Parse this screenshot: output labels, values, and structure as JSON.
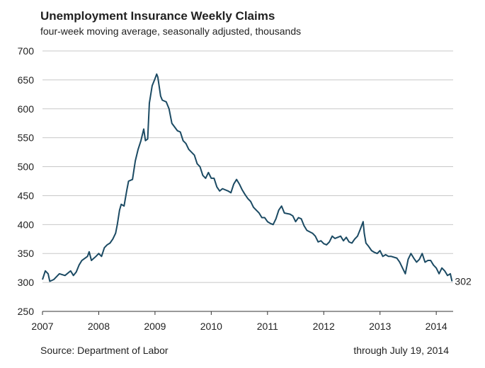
{
  "chart_data": {
    "type": "line",
    "title": "Unemployment Insurance Weekly Claims",
    "subtitle": "four-week moving average, seasonally adjusted, thousands",
    "source": "Source: Department  of Labor",
    "note": "through  July 19, 2014",
    "color": "#1b4a63",
    "grid": true,
    "xlim": [
      2007,
      2014.3
    ],
    "xticks": [
      2007,
      2008,
      2009,
      2010,
      2011,
      2012,
      2013,
      2014
    ],
    "ylim": [
      250,
      700
    ],
    "yticks": [
      250,
      300,
      350,
      400,
      450,
      500,
      550,
      600,
      650,
      700
    ],
    "x": [
      2007.0,
      2007.05,
      2007.1,
      2007.13,
      2007.2,
      2007.3,
      2007.4,
      2007.5,
      2007.55,
      2007.6,
      2007.65,
      2007.7,
      2007.8,
      2007.83,
      2007.87,
      2007.95,
      2008.0,
      2008.05,
      2008.1,
      2008.15,
      2008.2,
      2008.25,
      2008.3,
      2008.33,
      2008.37,
      2008.4,
      2008.45,
      2008.5,
      2008.53,
      2008.6,
      2008.65,
      2008.7,
      2008.75,
      2008.8,
      2008.83,
      2008.87,
      2008.9,
      2008.95,
      2009.0,
      2009.03,
      2009.05,
      2009.1,
      2009.13,
      2009.2,
      2009.25,
      2009.3,
      2009.4,
      2009.45,
      2009.5,
      2009.55,
      2009.6,
      2009.7,
      2009.75,
      2009.8,
      2009.85,
      2009.9,
      2009.95,
      2010.0,
      2010.05,
      2010.1,
      2010.15,
      2010.2,
      2010.3,
      2010.35,
      2010.4,
      2010.45,
      2010.5,
      2010.55,
      2010.6,
      2010.65,
      2010.7,
      2010.75,
      2010.8,
      2010.85,
      2010.9,
      2010.95,
      2011.0,
      2011.05,
      2011.1,
      2011.15,
      2011.2,
      2011.25,
      2011.3,
      2011.4,
      2011.45,
      2011.5,
      2011.55,
      2011.6,
      2011.65,
      2011.7,
      2011.8,
      2011.85,
      2011.9,
      2011.95,
      2012.0,
      2012.05,
      2012.1,
      2012.15,
      2012.2,
      2012.3,
      2012.35,
      2012.4,
      2012.45,
      2012.5,
      2012.55,
      2012.6,
      2012.65,
      2012.7,
      2012.72,
      2012.75,
      2012.8,
      2012.85,
      2012.9,
      2012.95,
      2013.0,
      2013.05,
      2013.1,
      2013.15,
      2013.2,
      2013.3,
      2013.35,
      2013.4,
      2013.45,
      2013.5,
      2013.55,
      2013.6,
      2013.65,
      2013.7,
      2013.75,
      2013.8,
      2013.85,
      2013.9,
      2013.95,
      2014.0,
      2014.05,
      2014.1,
      2014.15,
      2014.2,
      2014.25,
      2014.28
    ],
    "values": [
      305,
      320,
      315,
      302,
      305,
      315,
      312,
      320,
      312,
      318,
      330,
      338,
      345,
      353,
      338,
      345,
      350,
      345,
      360,
      365,
      368,
      375,
      385,
      400,
      425,
      435,
      432,
      460,
      475,
      478,
      510,
      530,
      545,
      565,
      545,
      548,
      610,
      640,
      652,
      660,
      655,
      622,
      615,
      612,
      600,
      575,
      562,
      560,
      545,
      540,
      530,
      520,
      505,
      500,
      485,
      480,
      490,
      480,
      480,
      465,
      458,
      462,
      458,
      455,
      470,
      478,
      470,
      460,
      452,
      445,
      440,
      430,
      425,
      420,
      412,
      412,
      405,
      402,
      400,
      410,
      425,
      432,
      420,
      418,
      415,
      405,
      412,
      410,
      398,
      390,
      385,
      380,
      370,
      372,
      367,
      365,
      370,
      380,
      376,
      380,
      372,
      378,
      370,
      368,
      375,
      380,
      392,
      405,
      385,
      368,
      362,
      355,
      352,
      350,
      355,
      345,
      348,
      345,
      345,
      342,
      335,
      325,
      315,
      340,
      350,
      342,
      335,
      340,
      350,
      335,
      338,
      338,
      330,
      325,
      315,
      325,
      320,
      312,
      315,
      302
    ]
  }
}
